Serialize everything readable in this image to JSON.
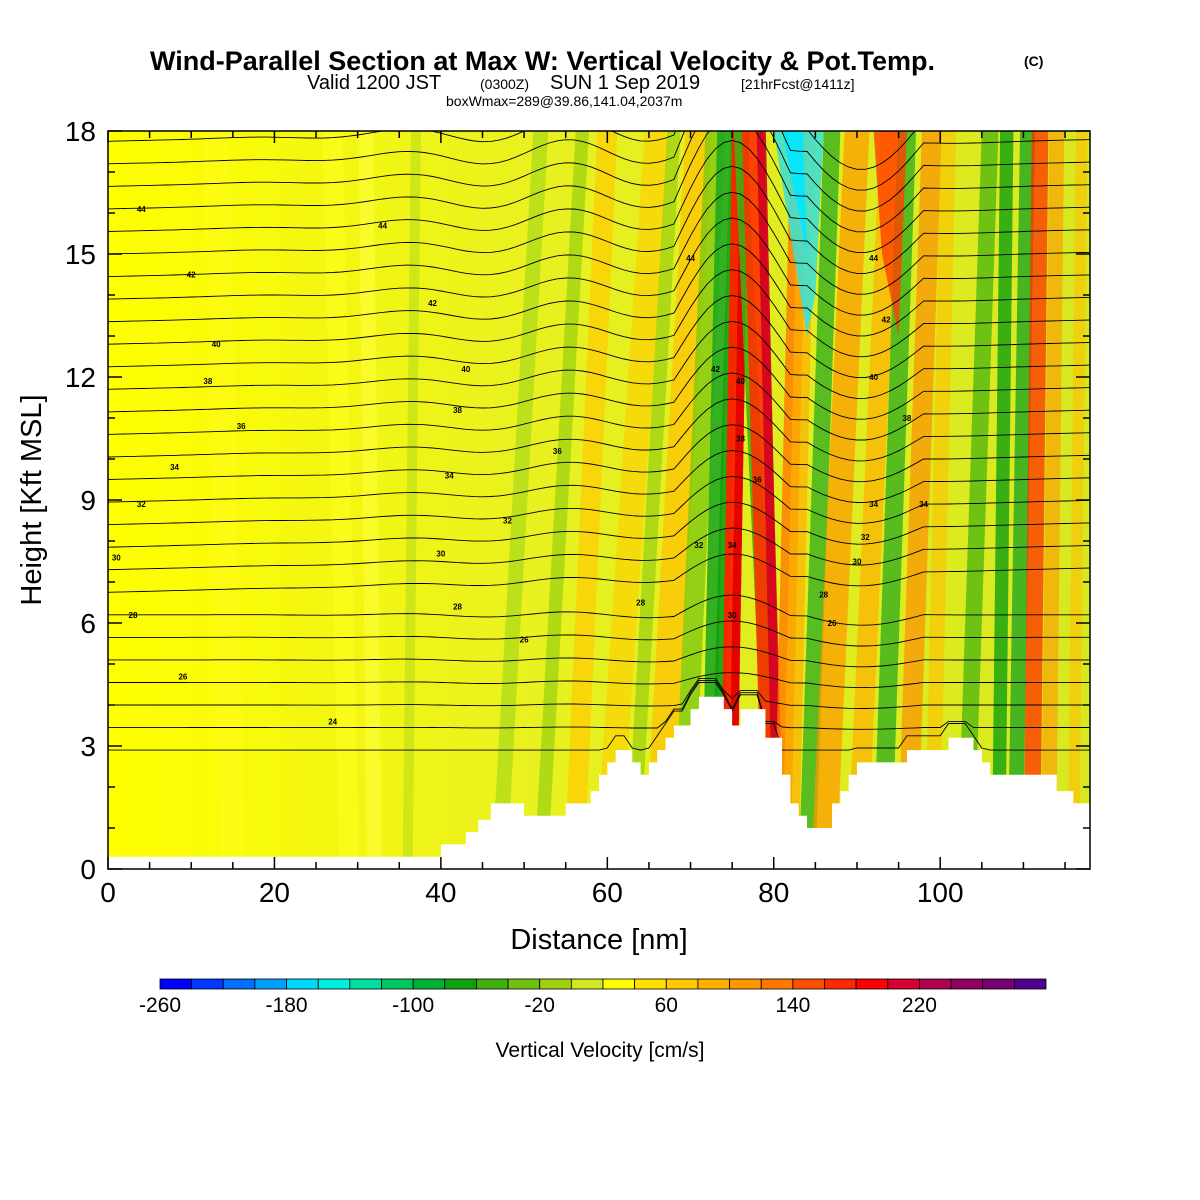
{
  "title": {
    "main": "Wind-Parallel Section at Max W: Vertical Velocity & Pot.Temp.",
    "copyright": "(C)",
    "valid_a": "Valid 1200 JST",
    "valid_b": "(0300Z)",
    "valid_c": "SUN 1 Sep 2019",
    "valid_d": "[21hrFcst@1411z]",
    "box": "boxWmax=289@39.86,141.04,2037m"
  },
  "chart_data": {
    "type": "heatmap",
    "xlabel": "Distance [nm]",
    "ylabel": "Height [Kft MSL]",
    "xlim": [
      0,
      118
    ],
    "ylim": [
      0,
      18
    ],
    "x_ticks": [
      "0",
      "20",
      "40",
      "60",
      "80",
      "100"
    ],
    "y_ticks": [
      "0",
      "3",
      "6",
      "9",
      "12",
      "15",
      "18"
    ],
    "colorbar": {
      "label": "Vertical Velocity [cm/s]",
      "min": -260,
      "max": 300,
      "step": 20,
      "tick_labels": [
        "-260",
        "-180",
        "-100",
        "-20",
        "60",
        "140",
        "220"
      ],
      "colors": [
        "#0000ff",
        "#0038ff",
        "#0070ff",
        "#00a0ff",
        "#00d8ff",
        "#00f0e0",
        "#00e0a0",
        "#00c860",
        "#00b030",
        "#10a010",
        "#40b010",
        "#70c010",
        "#a0d010",
        "#d0e820",
        "#ffff00",
        "#ffe000",
        "#ffc800",
        "#ffb000",
        "#ff9800",
        "#ff7800",
        "#ff5000",
        "#ff2800",
        "#ff0000",
        "#d80030",
        "#b00050",
        "#900060",
        "#780070",
        "#500090"
      ]
    },
    "terrain_kft": [
      [
        0,
        0.3
      ],
      [
        40,
        0.3
      ],
      [
        40,
        0.6
      ],
      [
        43,
        0.6
      ],
      [
        43,
        0.9
      ],
      [
        44.5,
        0.9
      ],
      [
        44.5,
        1.2
      ],
      [
        46,
        1.2
      ],
      [
        46,
        1.6
      ],
      [
        50,
        1.6
      ],
      [
        50,
        1.3
      ],
      [
        55,
        1.3
      ],
      [
        55,
        1.6
      ],
      [
        58,
        1.6
      ],
      [
        58,
        1.9
      ],
      [
        59,
        1.9
      ],
      [
        59,
        2.3
      ],
      [
        60,
        2.3
      ],
      [
        60,
        2.6
      ],
      [
        61,
        2.6
      ],
      [
        61,
        2.9
      ],
      [
        63,
        2.9
      ],
      [
        63,
        2.6
      ],
      [
        64,
        2.6
      ],
      [
        64,
        2.3
      ],
      [
        65,
        2.3
      ],
      [
        65,
        2.6
      ],
      [
        66,
        2.6
      ],
      [
        66,
        2.9
      ],
      [
        67,
        2.9
      ],
      [
        67,
        3.2
      ],
      [
        68,
        3.2
      ],
      [
        68,
        3.5
      ],
      [
        70,
        3.5
      ],
      [
        70,
        3.9
      ],
      [
        71,
        3.9
      ],
      [
        71,
        4.2
      ],
      [
        74,
        4.2
      ],
      [
        74,
        3.9
      ],
      [
        75,
        3.9
      ],
      [
        75,
        3.5
      ],
      [
        76,
        3.5
      ],
      [
        76,
        3.9
      ],
      [
        79,
        3.9
      ],
      [
        79,
        3.2
      ],
      [
        81,
        3.2
      ],
      [
        81,
        2.3
      ],
      [
        82,
        2.3
      ],
      [
        82,
        1.6
      ],
      [
        83,
        1.6
      ],
      [
        83,
        1.3
      ],
      [
        84,
        1.3
      ],
      [
        84,
        1.0
      ],
      [
        87,
        1.0
      ],
      [
        87,
        1.6
      ],
      [
        88,
        1.6
      ],
      [
        88,
        1.9
      ],
      [
        89,
        1.9
      ],
      [
        89,
        2.3
      ],
      [
        90,
        2.3
      ],
      [
        90,
        2.6
      ],
      [
        96,
        2.6
      ],
      [
        96,
        2.9
      ],
      [
        101,
        2.9
      ],
      [
        101,
        3.2
      ],
      [
        104,
        3.2
      ],
      [
        104,
        2.9
      ],
      [
        105,
        2.9
      ],
      [
        105,
        2.6
      ],
      [
        106,
        2.6
      ],
      [
        106,
        2.3
      ],
      [
        114,
        2.3
      ],
      [
        114,
        1.9
      ],
      [
        116,
        1.9
      ],
      [
        116,
        1.6
      ],
      [
        118,
        1.6
      ]
    ],
    "theta_contour_labels": [
      {
        "text": "44",
        "x": 4,
        "y": 16.1
      },
      {
        "text": "44",
        "x": 33,
        "y": 15.7
      },
      {
        "text": "44",
        "x": 70,
        "y": 14.9
      },
      {
        "text": "44",
        "x": 92,
        "y": 14.9
      },
      {
        "text": "42",
        "x": 10,
        "y": 14.5
      },
      {
        "text": "42",
        "x": 39,
        "y": 13.8
      },
      {
        "text": "42",
        "x": 93.5,
        "y": 13.4
      },
      {
        "text": "40",
        "x": 13,
        "y": 12.8
      },
      {
        "text": "40",
        "x": 43,
        "y": 12.2
      },
      {
        "text": "40",
        "x": 92,
        "y": 12.0
      },
      {
        "text": "40",
        "x": 76,
        "y": 11.9
      },
      {
        "text": "42",
        "x": 73,
        "y": 12.2
      },
      {
        "text": "38",
        "x": 12,
        "y": 11.9
      },
      {
        "text": "38",
        "x": 42,
        "y": 11.2
      },
      {
        "text": "38",
        "x": 76,
        "y": 10.5
      },
      {
        "text": "38",
        "x": 96,
        "y": 11.0
      },
      {
        "text": "36",
        "x": 16,
        "y": 10.8
      },
      {
        "text": "36",
        "x": 54,
        "y": 10.2
      },
      {
        "text": "36",
        "x": 78,
        "y": 9.5
      },
      {
        "text": "34",
        "x": 8,
        "y": 9.8
      },
      {
        "text": "34",
        "x": 41,
        "y": 9.6
      },
      {
        "text": "34",
        "x": 92,
        "y": 8.9
      },
      {
        "text": "34",
        "x": 98,
        "y": 8.9
      },
      {
        "text": "32",
        "x": 4,
        "y": 8.9
      },
      {
        "text": "32",
        "x": 48,
        "y": 8.5
      },
      {
        "text": "32",
        "x": 71,
        "y": 7.9
      },
      {
        "text": "34",
        "x": 75,
        "y": 7.9
      },
      {
        "text": "32",
        "x": 91,
        "y": 8.1
      },
      {
        "text": "30",
        "x": 1,
        "y": 7.6
      },
      {
        "text": "30",
        "x": 40,
        "y": 7.7
      },
      {
        "text": "30",
        "x": 90,
        "y": 7.5
      },
      {
        "text": "28",
        "x": 3,
        "y": 6.2
      },
      {
        "text": "28",
        "x": 42,
        "y": 6.4
      },
      {
        "text": "28",
        "x": 64,
        "y": 6.5
      },
      {
        "text": "30",
        "x": 75,
        "y": 6.2
      },
      {
        "text": "28",
        "x": 86,
        "y": 6.7
      },
      {
        "text": "26",
        "x": 50,
        "y": 5.6
      },
      {
        "text": "26",
        "x": 87,
        "y": 6.0
      },
      {
        "text": "26",
        "x": 9,
        "y": 4.7
      },
      {
        "text": "24",
        "x": 27,
        "y": 3.6
      }
    ]
  }
}
